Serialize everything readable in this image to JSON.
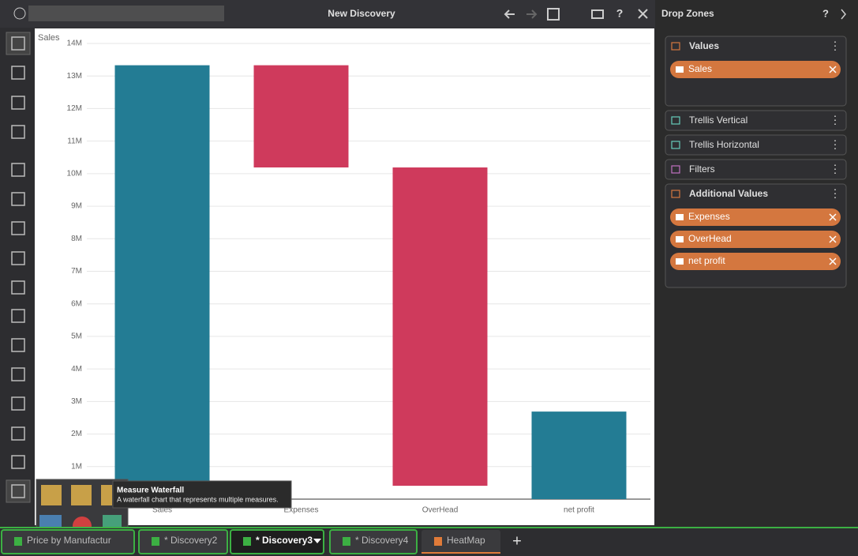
{
  "header": {
    "title": "New Discovery",
    "help": "?"
  },
  "chart_data": {
    "type": "waterfall",
    "y_label": "Sales",
    "categories": [
      "Sales",
      "Expenses",
      "OverHead",
      "net profit"
    ],
    "values": [
      13330000,
      -3140000,
      -9780000,
      2690000
    ],
    "colors": {
      "positive": "#237c94",
      "negative": "#cf3a5c"
    },
    "ylim": [
      0,
      14000000
    ],
    "yticks": [
      {
        "value": 1000000,
        "label": "1M"
      },
      {
        "value": 2000000,
        "label": "2M"
      },
      {
        "value": 3000000,
        "label": "3M"
      },
      {
        "value": 4000000,
        "label": "4M"
      },
      {
        "value": 5000000,
        "label": "5M"
      },
      {
        "value": 6000000,
        "label": "6M"
      },
      {
        "value": 7000000,
        "label": "7M"
      },
      {
        "value": 8000000,
        "label": "8M"
      },
      {
        "value": 9000000,
        "label": "9M"
      },
      {
        "value": 10000000,
        "label": "10M"
      },
      {
        "value": 11000000,
        "label": "11M"
      },
      {
        "value": 12000000,
        "label": "12M"
      },
      {
        "value": 13000000,
        "label": "13M"
      },
      {
        "value": 14000000,
        "label": "14M"
      }
    ],
    "grid": true
  },
  "drop_zones": {
    "title": "Drop Zones",
    "help": "?",
    "zones": [
      {
        "label": "Values",
        "items": [
          "Sales"
        ]
      },
      {
        "label": "Trellis Vertical"
      },
      {
        "label": "Trellis Horizontal"
      },
      {
        "label": "Filters"
      },
      {
        "label": "Additional Values",
        "items": [
          "Expenses",
          "OverHead",
          "net profit"
        ]
      }
    ]
  },
  "tooltip": {
    "title": "Measure Waterfall",
    "text": "A waterfall chart that represents multiple measures."
  },
  "tabs": [
    "Price by Manufactur",
    "* Discovery2",
    "* Discovery3",
    "* Discovery4",
    "HeatMap"
  ]
}
